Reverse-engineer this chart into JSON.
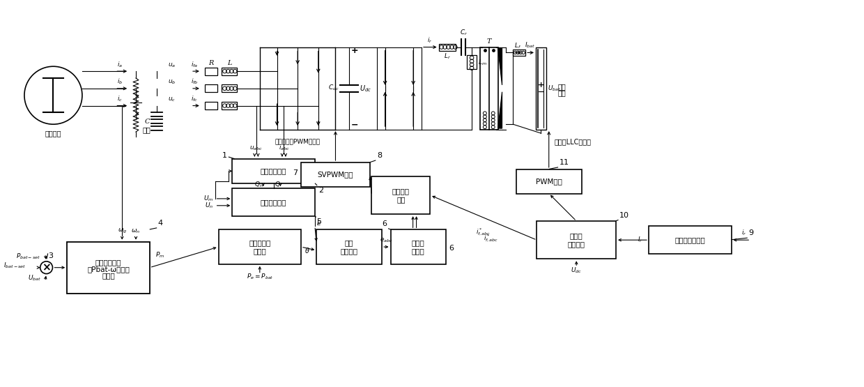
{
  "fig_width": 12.4,
  "fig_height": 5.55,
  "bg_color": "#ffffff",
  "lc": "#000000",
  "labels": {
    "tongbu": "同步电网",
    "fuzai": "负荷",
    "sanxiang": "三相电压源PWM整流器",
    "quanqiao": "全憐振LLC变换器",
    "dongli_1": "动力",
    "dongli_2": "电池",
    "celiangbox": "测量计算单元",
    "svpwm": "SVPWM单元",
    "dianliu": "电流控制\n单元",
    "liangcibox": "励磁控制单元",
    "dianyadc": "电压\n合成单元",
    "dingzibox": "定子电\n压方程",
    "zhuanzidong": "转子运动方\n程单元",
    "jiyu_1": "基于充电模式",
    "jiyu_2": "的Pbat-ω下垄控",
    "jiyu_3": "制单元",
    "shuangbihuan": "双闭环\n控制单元",
    "youxiaozhice": "有效値测量单元",
    "pwmbox": "PWM单元"
  }
}
